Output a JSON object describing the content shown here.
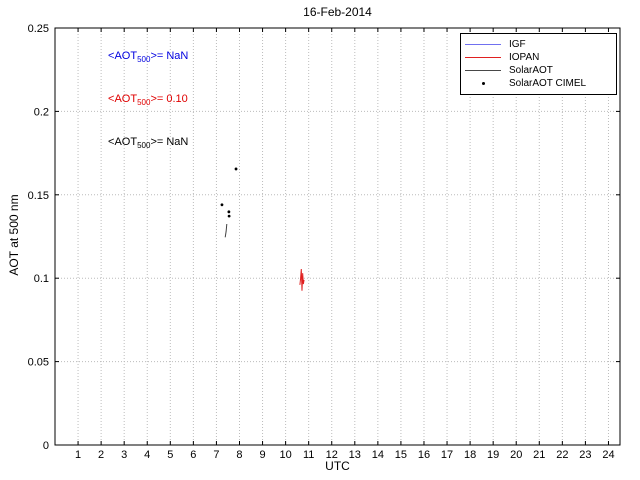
{
  "chart_data": {
    "type": "line",
    "title": "16-Feb-2014",
    "xlabel": "UTC",
    "ylabel": "AOT at 500 nm",
    "xlim": [
      0,
      24.5
    ],
    "ylim": [
      0,
      0.25
    ],
    "xticks": [
      1,
      2,
      3,
      4,
      5,
      6,
      7,
      8,
      9,
      10,
      11,
      12,
      13,
      14,
      15,
      16,
      17,
      18,
      19,
      20,
      21,
      22,
      23,
      24
    ],
    "ytick_values": [
      0,
      0.05,
      0.1,
      0.15,
      0.2,
      0.25
    ],
    "ytick_labels": [
      "0",
      "0.05",
      "0.1",
      "0.15",
      "0.2",
      "0.25"
    ],
    "grid": true,
    "legend_position": "top-right",
    "series": [
      {
        "name": "IGF",
        "color": "#7070f0",
        "type": "line",
        "points": []
      },
      {
        "name": "IOPAN",
        "color": "#e02020",
        "type": "line",
        "points": [
          [
            10.62,
            0.096
          ],
          [
            10.65,
            0.1
          ],
          [
            10.68,
            0.1055
          ],
          [
            10.71,
            0.0925
          ],
          [
            10.74,
            0.103
          ],
          [
            10.77,
            0.0965
          ],
          [
            10.8,
            0.099
          ]
        ]
      },
      {
        "name": "SolarAOT",
        "color": "#404040",
        "type": "line",
        "points": [
          [
            7.38,
            0.1245
          ],
          [
            7.42,
            0.128
          ],
          [
            7.45,
            0.1325
          ]
        ]
      },
      {
        "name": "SolarAOT CIMEL",
        "color": "#000000",
        "type": "scatter",
        "points": [
          [
            7.24,
            0.144
          ],
          [
            7.54,
            0.1398
          ],
          [
            7.55,
            0.1372
          ],
          [
            7.85,
            0.1655
          ]
        ]
      }
    ],
    "annotations": [
      {
        "series": "IGF",
        "prefix": "<AOT",
        "sub": "500",
        "suffix": ">=  NaN",
        "color": "#0000e0",
        "x": 2.3,
        "y": 0.232
      },
      {
        "series": "IOPAN",
        "prefix": "<AOT",
        "sub": "500",
        "suffix": ">= 0.10",
        "color": "#e00000",
        "x": 2.3,
        "y": 0.2065
      },
      {
        "series": "SolarAOT",
        "prefix": "<AOT",
        "sub": "500",
        "suffix": ">=  NaN",
        "color": "#000000",
        "x": 2.3,
        "y": 0.1805
      }
    ]
  },
  "legend": {
    "entries": [
      {
        "label": "IGF",
        "color": "#7070f0",
        "marker": "line"
      },
      {
        "label": "IOPAN",
        "color": "#e02020",
        "marker": "line"
      },
      {
        "label": "SolarAOT",
        "color": "#484848",
        "marker": "line"
      },
      {
        "label": "SolarAOT CIMEL",
        "color": "#000000",
        "marker": "dot"
      }
    ]
  }
}
